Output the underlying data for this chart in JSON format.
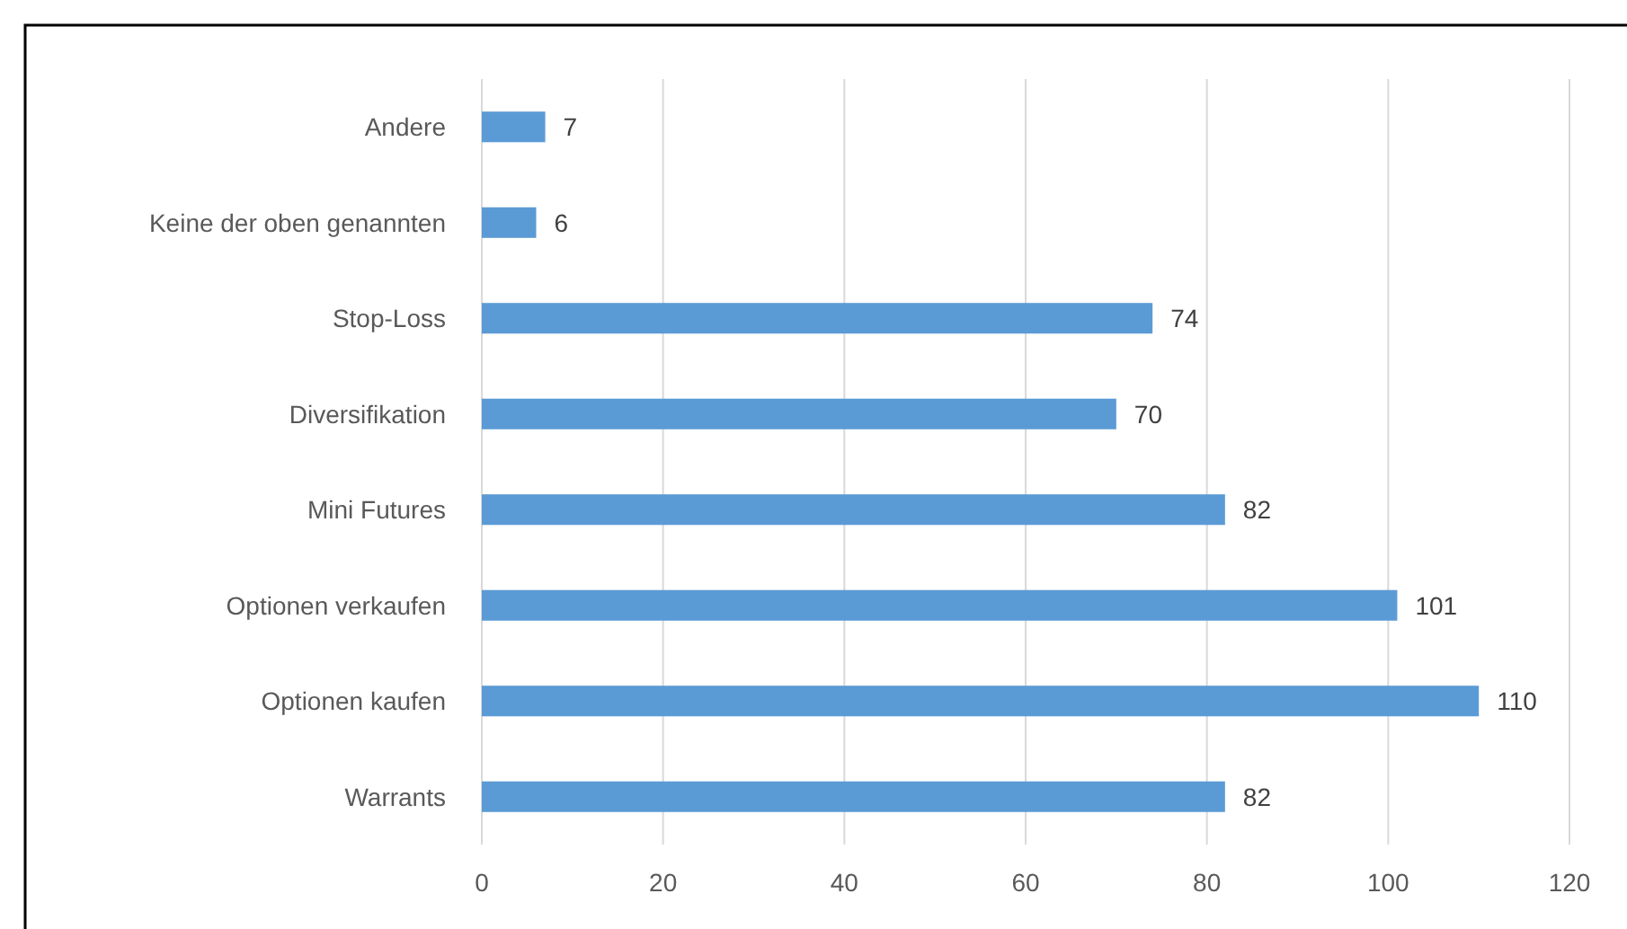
{
  "chart_data": {
    "type": "bar",
    "orientation": "horizontal",
    "categories": [
      "Andere",
      "Keine der oben genannten",
      "Stop-Loss",
      "Diversifikation",
      "Mini Futures",
      "Optionen verkaufen",
      "Optionen kaufen",
      "Warrants"
    ],
    "values": [
      7,
      6,
      74,
      70,
      82,
      101,
      110,
      82
    ],
    "color": "#5b9bd5",
    "xlim": [
      0,
      120
    ],
    "xticks": [
      0,
      20,
      40,
      60,
      80,
      100,
      120
    ],
    "grid": "x",
    "data_labels": true
  }
}
